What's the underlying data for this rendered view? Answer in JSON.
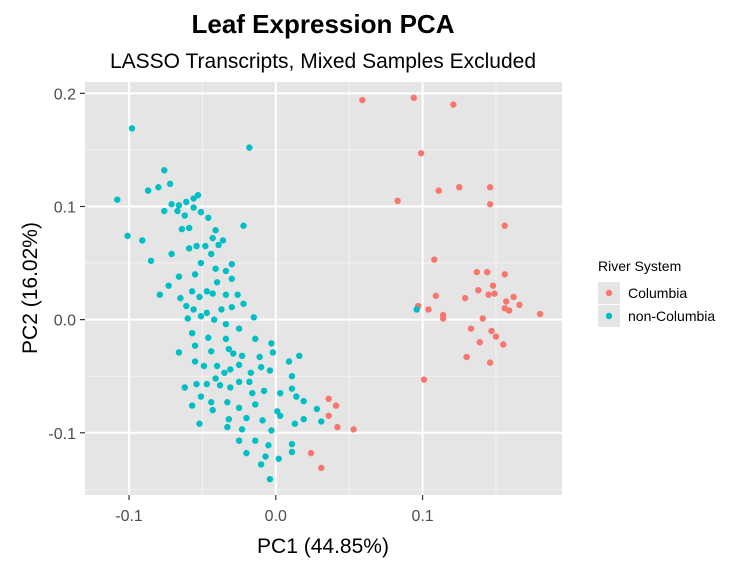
{
  "chart_data": {
    "type": "scatter",
    "title": "Leaf Expression PCA",
    "subtitle": "LASSO Transcripts, Mixed Samples Excluded",
    "xlabel": "PC1 (44.85%)",
    "ylabel": "PC2 (16.02%)",
    "xlim": [
      -0.13,
      0.195
    ],
    "ylim": [
      -0.155,
      0.21
    ],
    "x_ticks": [
      -0.1,
      0.0,
      0.1
    ],
    "x_tick_labels": [
      "-0.1",
      "0.0",
      "0.1"
    ],
    "y_ticks": [
      -0.1,
      0.0,
      0.1,
      0.2
    ],
    "y_tick_labels": [
      "-0.1",
      "0.0",
      "0.1",
      "0.2"
    ],
    "grid": true,
    "legend": {
      "title": "River System",
      "position": "right"
    },
    "colors": {
      "panel": "#E5E5E5",
      "grid_major": "#FFFFFF",
      "grid_minor": "#F2F2F2",
      "tick": "#333333",
      "tick_label": "#4D4D4D"
    },
    "series": [
      {
        "name": "Columbia",
        "color": "#F8766D",
        "points": [
          [
            0.059,
            0.194
          ],
          [
            0.094,
            0.196
          ],
          [
            0.121,
            0.19
          ],
          [
            0.099,
            0.147
          ],
          [
            0.083,
            0.105
          ],
          [
            0.111,
            0.114
          ],
          [
            0.125,
            0.117
          ],
          [
            0.146,
            0.117
          ],
          [
            0.146,
            0.102
          ],
          [
            0.156,
            0.083
          ],
          [
            0.108,
            0.053
          ],
          [
            0.137,
            0.042
          ],
          [
            0.144,
            0.042
          ],
          [
            0.156,
            0.04
          ],
          [
            0.148,
            0.03
          ],
          [
            0.138,
            0.026
          ],
          [
            0.097,
            0.012
          ],
          [
            0.109,
            0.021
          ],
          [
            0.129,
            0.019
          ],
          [
            0.145,
            0.022
          ],
          [
            0.149,
            0.023
          ],
          [
            0.157,
            0.016
          ],
          [
            0.162,
            0.02
          ],
          [
            0.166,
            0.013
          ],
          [
            0.096,
            0.009
          ],
          [
            0.104,
            0.009
          ],
          [
            0.114,
            0.004
          ],
          [
            0.114,
            0.001
          ],
          [
            0.141,
            0.001
          ],
          [
            0.156,
            0.01
          ],
          [
            0.159,
            0.008
          ],
          [
            0.18,
            0.005
          ],
          [
            0.133,
            -0.008
          ],
          [
            0.147,
            -0.01
          ],
          [
            0.15,
            -0.015
          ],
          [
            0.139,
            -0.02
          ],
          [
            0.155,
            -0.022
          ],
          [
            0.13,
            -0.033
          ],
          [
            0.146,
            -0.038
          ],
          [
            0.101,
            -0.053
          ],
          [
            0.036,
            -0.07
          ],
          [
            0.041,
            -0.076
          ],
          [
            0.036,
            -0.085
          ],
          [
            0.042,
            -0.095
          ],
          [
            0.053,
            -0.097
          ],
          [
            0.024,
            -0.118
          ],
          [
            0.031,
            -0.131
          ]
        ]
      },
      {
        "name": "non-Columbia",
        "color": "#00BFC4",
        "points": [
          [
            -0.098,
            0.169
          ],
          [
            -0.076,
            0.132
          ],
          [
            -0.018,
            0.152
          ],
          [
            -0.087,
            0.114
          ],
          [
            -0.08,
            0.117
          ],
          [
            -0.072,
            0.12
          ],
          [
            -0.108,
            0.106
          ],
          [
            -0.071,
            0.102
          ],
          [
            -0.066,
            0.101
          ],
          [
            -0.061,
            0.104
          ],
          [
            -0.056,
            0.107
          ],
          [
            -0.053,
            0.11
          ],
          [
            -0.056,
            0.099
          ],
          [
            -0.062,
            0.092
          ],
          [
            -0.067,
            0.096
          ],
          [
            -0.051,
            0.095
          ],
          [
            -0.076,
            0.096
          ],
          [
            -0.046,
            0.09
          ],
          [
            -0.059,
            0.081
          ],
          [
            -0.022,
            0.083
          ],
          [
            -0.101,
            0.074
          ],
          [
            -0.091,
            0.07
          ],
          [
            -0.064,
            0.08
          ],
          [
            -0.041,
            0.079
          ],
          [
            -0.048,
            0.065
          ],
          [
            -0.054,
            0.065
          ],
          [
            -0.039,
            0.066
          ],
          [
            -0.036,
            0.07
          ],
          [
            -0.043,
            0.072
          ],
          [
            -0.085,
            0.052
          ],
          [
            -0.071,
            0.058
          ],
          [
            -0.059,
            0.063
          ],
          [
            -0.044,
            0.058
          ],
          [
            -0.051,
            0.05
          ],
          [
            -0.03,
            0.049
          ],
          [
            -0.055,
            0.04
          ],
          [
            -0.066,
            0.038
          ],
          [
            -0.041,
            0.045
          ],
          [
            -0.034,
            0.043
          ],
          [
            -0.073,
            0.03
          ],
          [
            -0.057,
            0.025
          ],
          [
            -0.047,
            0.025
          ],
          [
            -0.04,
            0.033
          ],
          [
            -0.03,
            0.036
          ],
          [
            -0.079,
            0.022
          ],
          [
            -0.065,
            0.019
          ],
          [
            -0.061,
            0.012
          ],
          [
            -0.052,
            0.02
          ],
          [
            -0.043,
            0.023
          ],
          [
            -0.034,
            0.022
          ],
          [
            -0.026,
            0.022
          ],
          [
            -0.056,
            0.009
          ],
          [
            -0.047,
            0.006
          ],
          [
            -0.037,
            0.009
          ],
          [
            -0.03,
            0.011
          ],
          [
            -0.022,
            0.014
          ],
          [
            -0.06,
            0.001
          ],
          [
            -0.051,
            0.003
          ],
          [
            -0.042,
            0.0
          ],
          [
            -0.034,
            -0.004
          ],
          [
            -0.015,
            0.002
          ],
          [
            -0.025,
            -0.008
          ],
          [
            -0.046,
            -0.016
          ],
          [
            -0.057,
            -0.012
          ],
          [
            -0.034,
            -0.017
          ],
          [
            -0.055,
            -0.023
          ],
          [
            -0.032,
            -0.026
          ],
          [
            -0.014,
            -0.017
          ],
          [
            -0.003,
            -0.021
          ],
          [
            -0.066,
            -0.029
          ],
          [
            -0.044,
            -0.028
          ],
          [
            -0.029,
            -0.03
          ],
          [
            -0.023,
            -0.032
          ],
          [
            -0.002,
            -0.029
          ],
          [
            -0.011,
            -0.033
          ],
          [
            -0.055,
            -0.037
          ],
          [
            -0.049,
            -0.041
          ],
          [
            -0.04,
            -0.041
          ],
          [
            -0.031,
            -0.044
          ],
          [
            -0.025,
            -0.04
          ],
          [
            -0.041,
            -0.052
          ],
          [
            -0.035,
            -0.047
          ],
          [
            -0.017,
            -0.047
          ],
          [
            -0.01,
            -0.042
          ],
          [
            -0.004,
            -0.045
          ],
          [
            0.009,
            -0.037
          ],
          [
            0.016,
            -0.032
          ],
          [
            -0.062,
            -0.06
          ],
          [
            -0.054,
            -0.057
          ],
          [
            -0.047,
            -0.057
          ],
          [
            -0.038,
            -0.058
          ],
          [
            -0.031,
            -0.06
          ],
          [
            -0.025,
            -0.055
          ],
          [
            -0.018,
            -0.055
          ],
          [
            0.011,
            -0.05
          ],
          [
            -0.051,
            -0.068
          ],
          [
            -0.044,
            -0.073
          ],
          [
            -0.033,
            -0.073
          ],
          [
            -0.016,
            -0.065
          ],
          [
            -0.008,
            -0.063
          ],
          [
            0.003,
            -0.065
          ],
          [
            0.011,
            -0.061
          ],
          [
            0.014,
            -0.068
          ],
          [
            -0.057,
            -0.076
          ],
          [
            -0.043,
            -0.08
          ],
          [
            -0.025,
            -0.078
          ],
          [
            -0.014,
            -0.075
          ],
          [
            0.001,
            -0.081
          ],
          [
            0.019,
            -0.072
          ],
          [
            0.028,
            -0.079
          ],
          [
            -0.032,
            -0.088
          ],
          [
            -0.02,
            -0.087
          ],
          [
            -0.009,
            -0.089
          ],
          [
            0.003,
            -0.085
          ],
          [
            0.013,
            -0.092
          ],
          [
            0.019,
            -0.088
          ],
          [
            -0.052,
            -0.092
          ],
          [
            -0.033,
            -0.095
          ],
          [
            -0.023,
            -0.097
          ],
          [
            -0.003,
            -0.098
          ],
          [
            0.031,
            -0.09
          ],
          [
            -0.025,
            -0.107
          ],
          [
            -0.014,
            -0.107
          ],
          [
            -0.005,
            -0.111
          ],
          [
            0.011,
            -0.11
          ],
          [
            -0.02,
            -0.118
          ],
          [
            -0.007,
            -0.121
          ],
          [
            0.011,
            -0.117
          ],
          [
            -0.01,
            -0.128
          ],
          [
            0.002,
            -0.123
          ],
          [
            -0.004,
            -0.141
          ],
          [
            0.096,
            0.009
          ]
        ]
      }
    ]
  }
}
